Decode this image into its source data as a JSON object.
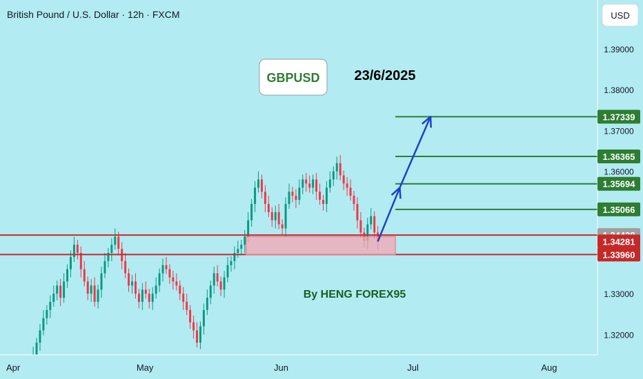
{
  "header": {
    "title": "British Pound / U.S. Dollar · 12h · FXCM",
    "currency": "USD"
  },
  "annotations": {
    "symbol": "GBPUSD",
    "date": "23/6/2025",
    "author": "By HENG FOREX95"
  },
  "colors": {
    "background": "#b2ebf2",
    "candle_up": "#089981",
    "candle_down": "#f23645",
    "target_line": "#2e7d32",
    "support_line": "#c62828",
    "support_zone": "#f4a6b3",
    "arrow": "#1e40c8",
    "current_price_badge": "#9e9e9e"
  },
  "chart_data": {
    "type": "candlestick",
    "title": "British Pound / U.S. Dollar · 12h · FXCM",
    "y_axis": {
      "ylim": [
        1.315,
        1.402
      ],
      "ticks": [
        "1.39000",
        "1.38000",
        "1.37000",
        "1.36000",
        "1.33000",
        "1.32000"
      ],
      "tick_values": [
        1.39,
        1.38,
        1.37,
        1.36,
        1.33,
        1.32
      ]
    },
    "x_axis": {
      "ticks": [
        "Apr",
        "May",
        "Jun",
        "Jul",
        "Aug"
      ],
      "tick_dates": [
        "2025-04-01",
        "2025-05-01",
        "2025-06-01",
        "2025-07-01",
        "2025-08-01"
      ],
      "range": [
        "2025-03-29",
        "2025-08-12"
      ]
    },
    "candle_dates": [
      "2025-04-04",
      "2025-06-23"
    ],
    "candles_close": [
      1.31,
      1.312,
      1.315,
      1.318,
      1.321,
      1.324,
      1.326,
      1.328,
      1.33,
      1.332,
      1.329,
      1.333,
      1.336,
      1.339,
      1.342,
      1.34,
      1.336,
      1.333,
      1.33,
      1.332,
      1.328,
      1.331,
      1.335,
      1.338,
      1.34,
      1.342,
      1.344,
      1.341,
      1.338,
      1.335,
      1.332,
      1.333,
      1.33,
      1.328,
      1.331,
      1.33,
      1.328,
      1.33,
      1.332,
      1.335,
      1.337,
      1.336,
      1.334,
      1.333,
      1.332,
      1.33,
      1.328,
      1.326,
      1.323,
      1.321,
      1.318,
      1.322,
      1.326,
      1.329,
      1.332,
      1.335,
      1.333,
      1.331,
      1.334,
      1.337,
      1.338,
      1.34,
      1.341,
      1.342,
      1.344,
      1.348,
      1.352,
      1.356,
      1.358,
      1.355,
      1.352,
      1.35,
      1.348,
      1.35,
      1.347,
      1.346,
      1.352,
      1.355,
      1.354,
      1.353,
      1.356,
      1.358,
      1.357,
      1.356,
      1.358,
      1.355,
      1.353,
      1.352,
      1.356,
      1.358,
      1.36,
      1.362,
      1.359,
      1.357,
      1.356,
      1.354,
      1.352,
      1.348,
      1.345,
      1.343,
      1.347,
      1.349,
      1.345,
      1.3428
    ],
    "price_levels": [
      {
        "label": "1.37339",
        "value": 1.37339,
        "kind": "target"
      },
      {
        "label": "1.36365",
        "value": 1.36365,
        "kind": "target"
      },
      {
        "label": "1.35694",
        "value": 1.35694,
        "kind": "target"
      },
      {
        "label": "1.35066",
        "value": 1.35066,
        "kind": "target"
      },
      {
        "label": "1.34438",
        "value": 1.34438,
        "kind": "reference"
      },
      {
        "label": "1.34281",
        "value": 1.34281,
        "kind": "current"
      },
      {
        "label": "1.33960",
        "value": 1.3396,
        "kind": "support"
      }
    ],
    "support_zone": {
      "from": 1.3395,
      "to": 1.344
    },
    "arrow_path": [
      {
        "date": "2025-06-23",
        "value": 1.3428
      },
      {
        "date": "2025-06-28",
        "value": 1.356
      },
      {
        "date": "2025-07-05",
        "value": 1.3734
      }
    ],
    "grid": false,
    "legend": "none"
  }
}
